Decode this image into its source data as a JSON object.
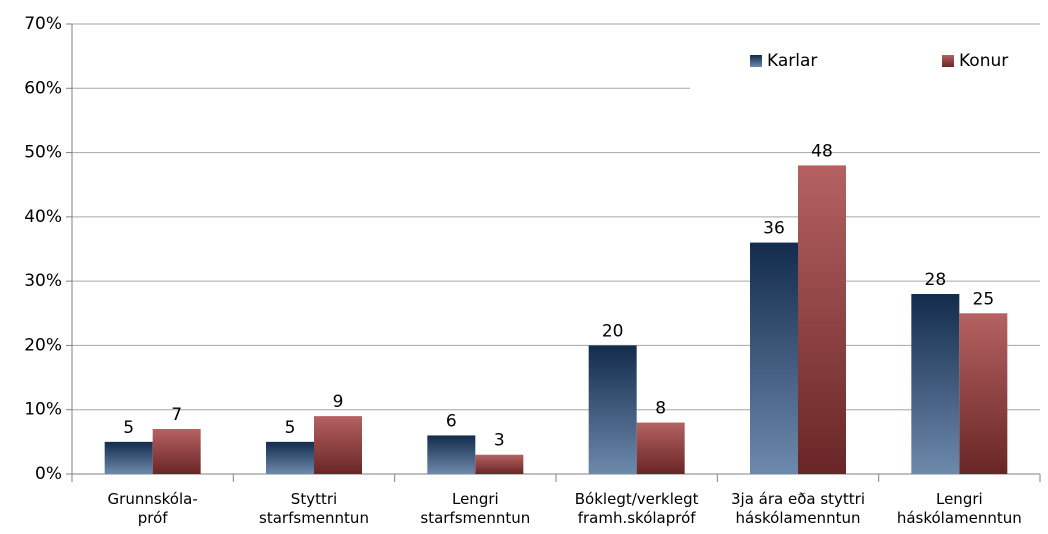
{
  "chart_data": {
    "type": "bar",
    "categories": [
      "Grunnskóla-\npróf",
      "Styttri\nstarfsmenntun",
      "Lengri\nstarfsmenntun",
      "Bóklegt/verklegt\nframh.skólapróf",
      "3ja ára eða styttri\nháskólamenntun",
      "Lengri\nháskólamenntun"
    ],
    "series": [
      {
        "name": "Karlar",
        "color": "#1f4a80",
        "values": [
          5,
          5,
          6,
          20,
          36,
          28
        ]
      },
      {
        "name": "Konur",
        "color": "#a23a3a",
        "values": [
          7,
          9,
          3,
          8,
          48,
          25
        ]
      }
    ],
    "ylim": [
      0,
      70
    ],
    "yticks": [
      {
        "value": 0,
        "label": "0%"
      },
      {
        "value": 10,
        "label": "10%"
      },
      {
        "value": 20,
        "label": "20%"
      },
      {
        "value": 30,
        "label": "30%"
      },
      {
        "value": 40,
        "label": "40%"
      },
      {
        "value": 50,
        "label": "50%"
      },
      {
        "value": 60,
        "label": "60%"
      },
      {
        "value": 70,
        "label": "70%"
      }
    ],
    "grid": true,
    "legend": "upper right"
  }
}
